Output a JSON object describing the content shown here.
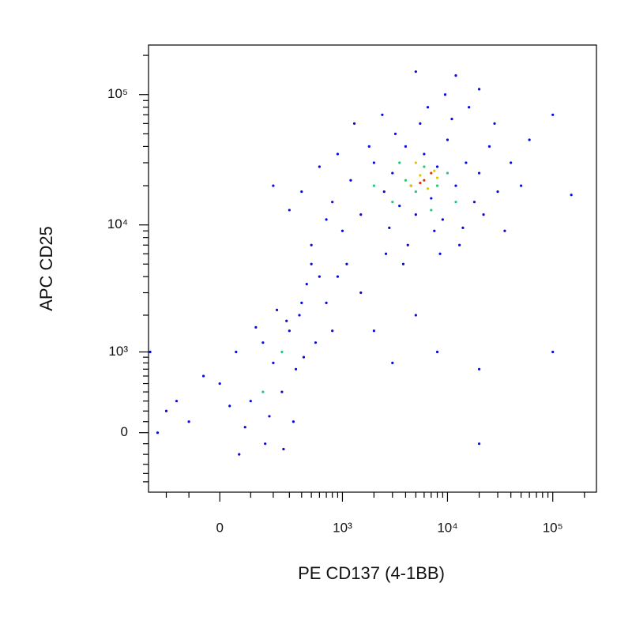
{
  "chart_data": {
    "type": "scatter",
    "x_label": "PE CD137 (4-1BB)",
    "y_label": "APC CD25",
    "xscale": "biexponential",
    "yscale": "biexponential",
    "xlim": [
      -312,
      260000
    ],
    "ylim": [
      -640,
      240000
    ],
    "xticks": [
      0,
      {
        "value": 1000,
        "label": "10³"
      },
      {
        "value": 10000,
        "label": "10⁴"
      },
      {
        "value": 100000,
        "label": "10⁵"
      }
    ],
    "yticks": [
      0,
      {
        "value": 1000,
        "label": "10³"
      },
      {
        "value": 10000,
        "label": "10⁴"
      },
      {
        "value": 100000,
        "label": "10⁵"
      }
    ],
    "xminor_ticks": [
      -200,
      -100,
      100,
      200,
      300,
      400,
      500,
      600,
      700,
      800,
      900,
      2000,
      3000,
      4000,
      5000,
      6000,
      7000,
      8000,
      9000,
      20000,
      30000,
      40000,
      50000,
      60000,
      70000,
      80000,
      90000,
      200000
    ],
    "yminor_ticks": [
      -500,
      -400,
      -300,
      -200,
      -100,
      100,
      200,
      300,
      400,
      500,
      600,
      700,
      800,
      900,
      2000,
      3000,
      4000,
      5000,
      6000,
      7000,
      8000,
      9000,
      20000,
      30000,
      40000,
      50000,
      60000,
      70000,
      80000,
      90000,
      200000
    ],
    "series": [
      {
        "color": "#0a0adc",
        "x": [
          800,
          1200,
          1500,
          2000,
          2500,
          3000,
          3500,
          4000,
          4500,
          5000,
          6000,
          7000,
          8000,
          9000,
          10000,
          12000,
          15000,
          18000,
          20000,
          25000,
          30000,
          1000,
          1800,
          2800,
          3200,
          5500,
          7500,
          11000,
          14000,
          22000,
          28000,
          40000,
          600,
          400,
          900,
          1300,
          2400,
          6500,
          9500,
          16000,
          50000,
          35000,
          4200,
          2600,
          700,
          300,
          200,
          500,
          1100,
          3800,
          8500,
          13000,
          60000,
          20000,
          5000,
          12000,
          -200,
          -100,
          0,
          100,
          200,
          300,
          400,
          150,
          250,
          350,
          50,
          -50,
          80,
          180,
          280,
          450,
          500,
          600,
          380,
          220,
          120,
          30,
          -150,
          330,
          420,
          550,
          160,
          60,
          260,
          -250,
          700,
          800,
          900,
          1500,
          2000,
          3000,
          5000,
          8000,
          20000,
          -300,
          100000,
          150000,
          100000,
          20000
        ],
        "y": [
          15000,
          22000,
          12000,
          30000,
          18000,
          25000,
          14000,
          40000,
          20000,
          12000,
          35000,
          16000,
          28000,
          11000,
          45000,
          20000,
          30000,
          15000,
          25000,
          40000,
          18000,
          9000,
          40000,
          9500,
          50000,
          60000,
          9000,
          65000,
          9500,
          12000,
          60000,
          30000,
          28000,
          18000,
          35000,
          60000,
          70000,
          80000,
          100000,
          80000,
          20000,
          9000,
          7000,
          6000,
          11000,
          13000,
          20000,
          7000,
          5000,
          5000,
          6000,
          7000,
          45000,
          110000,
          150000,
          140000,
          200,
          100,
          500,
          300,
          800,
          1500,
          2500,
          1200,
          400,
          700,
          1000,
          600,
          50,
          150,
          1800,
          3500,
          5000,
          4000,
          2000,
          2200,
          1600,
          250,
          300,
          100,
          900,
          1200,
          -100,
          -200,
          -150,
          0,
          2500,
          1500,
          4000,
          3000,
          1500,
          800,
          2000,
          1000,
          700,
          1000,
          70000,
          17000,
          1000,
          -100
        ]
      },
      {
        "color": "#20c878",
        "x": [
          2000,
          3000,
          4000,
          5000,
          6000,
          8000,
          10000,
          3500,
          7000,
          150,
          250,
          12000
        ],
        "y": [
          20000,
          15000,
          22000,
          18000,
          28000,
          20000,
          25000,
          30000,
          13000,
          400,
          1000,
          15000
        ]
      },
      {
        "color": "#d8c800",
        "x": [
          4500,
          5500,
          6500,
          7500,
          5000,
          8000
        ],
        "y": [
          20000,
          24000,
          19000,
          26000,
          30000,
          23000
        ]
      },
      {
        "color": "#e03010",
        "x": [
          6000,
          7000,
          5500
        ],
        "y": [
          22000,
          25000,
          21000
        ]
      }
    ]
  }
}
